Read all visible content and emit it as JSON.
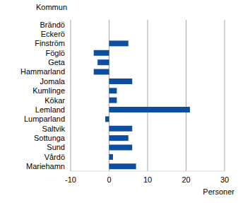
{
  "chart_data": {
    "type": "bar",
    "orientation": "horizontal",
    "y_label": "Kommun",
    "x_label": "Personer",
    "categories": [
      "Brändö",
      "Eckerö",
      "Finström",
      "Föglö",
      "Geta",
      "Hammarland",
      "Jomala",
      "Kumlinge",
      "Kökar",
      "Lemland",
      "Lumparland",
      "Saltvik",
      "Sottunga",
      "Sund",
      "Vårdö",
      "Mariehamn"
    ],
    "values": [
      0,
      0,
      5,
      -4,
      -3,
      -4,
      6,
      2,
      2,
      21,
      -1,
      6,
      5,
      6,
      1,
      7
    ],
    "color": "#0d4f9e",
    "xlim": [
      -10,
      30
    ],
    "xticks": [
      -10,
      0,
      10,
      20,
      30
    ],
    "grid": true
  }
}
